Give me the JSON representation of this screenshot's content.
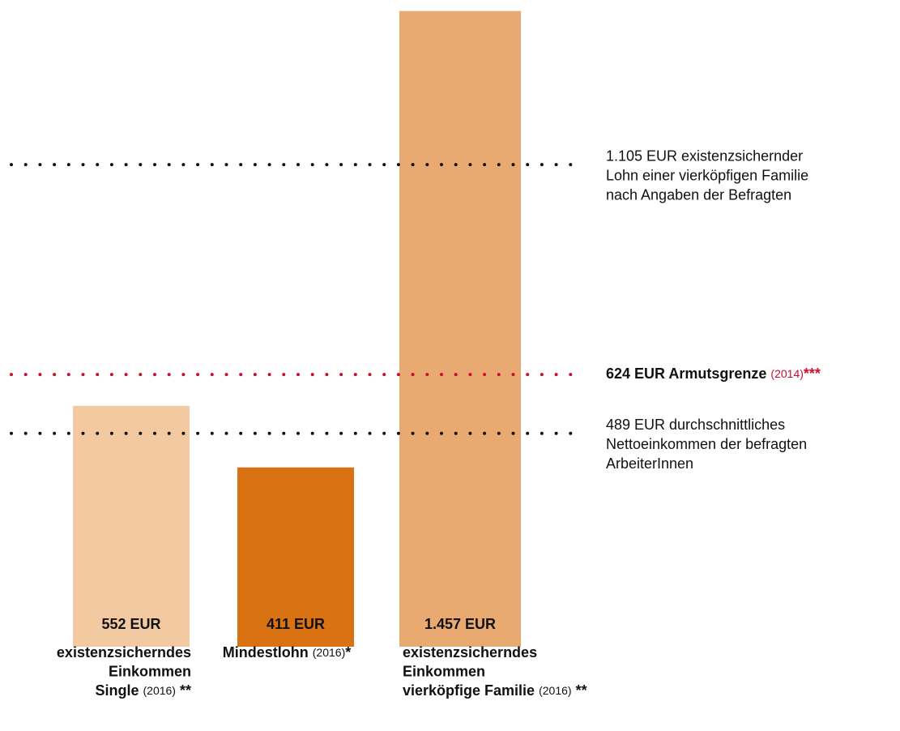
{
  "chart_data": {
    "type": "bar",
    "categories": [
      [
        "existenzsicherndes",
        "Einkommen",
        "Single"
      ],
      [
        "Mindestlohn"
      ],
      [
        "existenzsicherndes",
        "Einkommen",
        "vierköpfige Familie"
      ]
    ],
    "category_notes": [
      "(2016)",
      "(2016)",
      "(2016)"
    ],
    "category_marks": [
      "**",
      "*",
      "**"
    ],
    "values": [
      552,
      411,
      1457
    ],
    "value_labels": [
      "552 EUR",
      "411 EUR",
      "1.457 EUR"
    ],
    "colors": [
      "#f2c9a0",
      "#d97212",
      "#e8aa70"
    ],
    "ylim": [
      0,
      1460
    ],
    "reference_lines": [
      {
        "value": 1105,
        "color": "#111111",
        "lines": [
          "1.105 EUR existenzsichernder",
          "Lohn einer vierköpfigen Familie",
          "nach Angaben der Befragten"
        ]
      },
      {
        "value": 624,
        "color": "#c8102e",
        "lines": [
          "624 EUR Armutsgrenze"
        ],
        "note": "(2014)",
        "mark": "***"
      },
      {
        "value": 489,
        "color": "#111111",
        "lines": [
          "489 EUR durchschnittliches",
          "Nettoeinkommen der befragten",
          "ArbeiterInnen"
        ]
      }
    ]
  }
}
